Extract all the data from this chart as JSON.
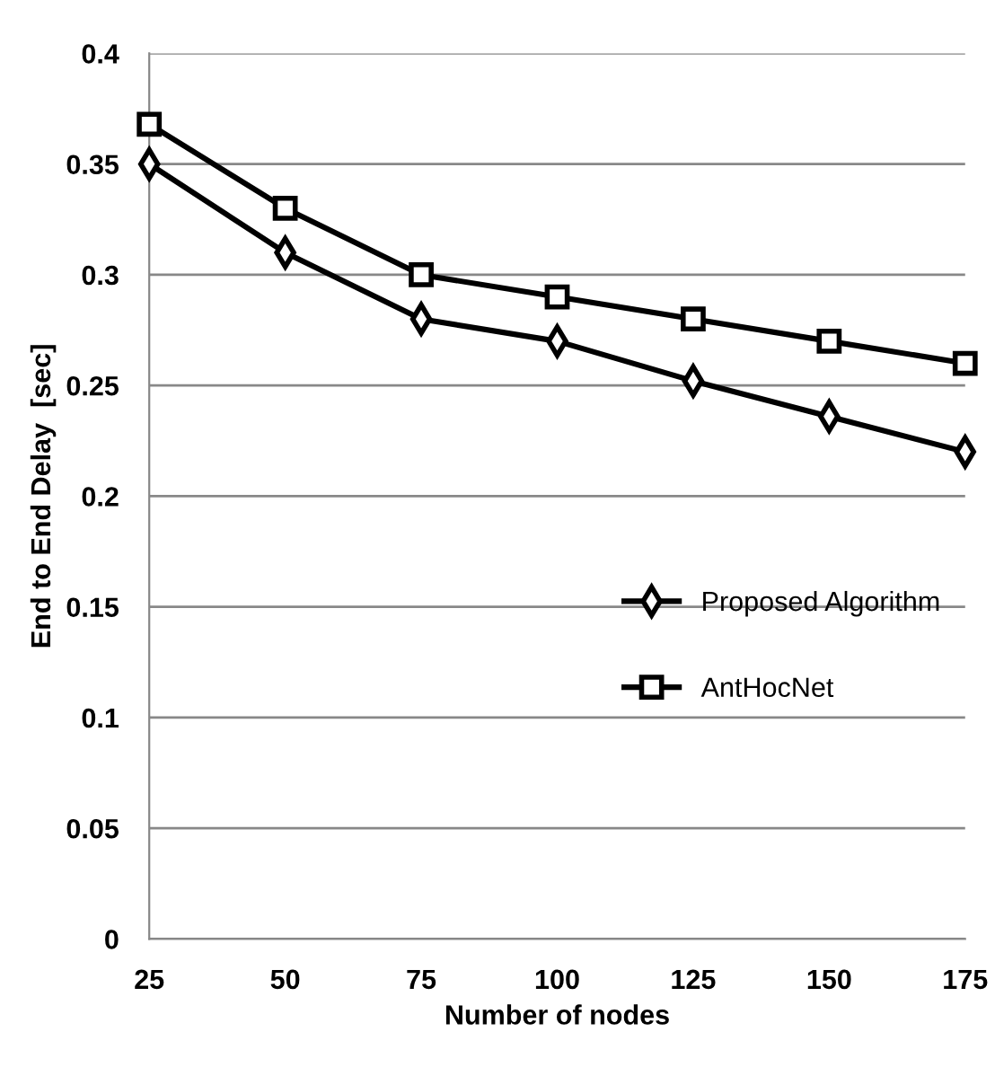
{
  "chart_data": {
    "type": "line",
    "xlabel": "Number of nodes",
    "ylabel": "End to End Delay  [sec]",
    "categories": [
      "25",
      "50",
      "75",
      "100",
      "125",
      "150",
      "175"
    ],
    "series": [
      {
        "name": "Proposed Algorithm",
        "color": "#000000",
        "marker": "diamond",
        "values": [
          0.35,
          0.31,
          0.28,
          0.27,
          0.252,
          0.236,
          0.22
        ]
      },
      {
        "name": "AntHocNet",
        "color": "#000000",
        "marker": "square",
        "values": [
          0.368,
          0.33,
          0.3,
          0.29,
          0.28,
          0.27,
          0.26
        ]
      }
    ],
    "ylim": [
      0,
      0.4
    ],
    "yticks": [
      0,
      0.05,
      0.1,
      0.15,
      0.2,
      0.25,
      0.3,
      0.35,
      0.4
    ],
    "grid": "y",
    "legend": "right",
    "line_style": "solid"
  }
}
